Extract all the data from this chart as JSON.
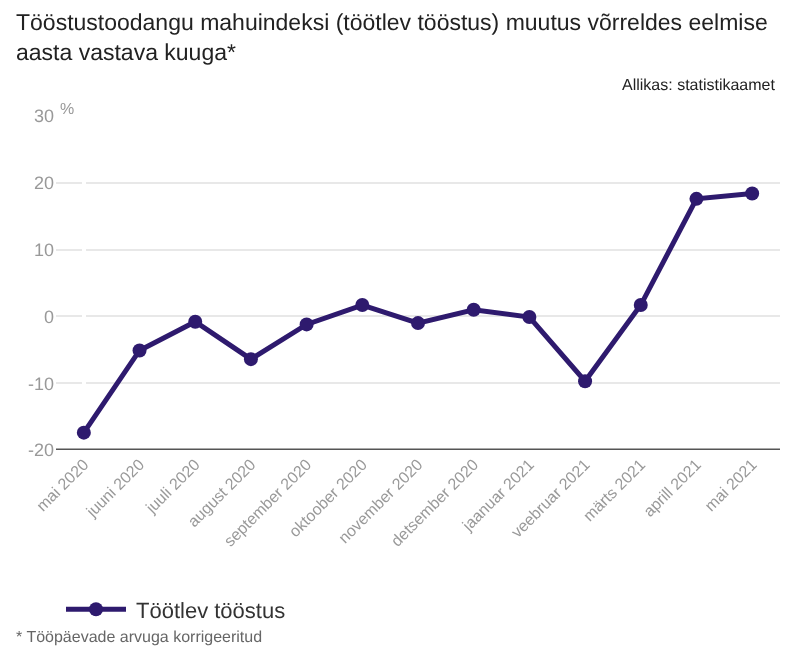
{
  "chart_data": {
    "type": "line",
    "title": "Tööstustoodangu mahuindeksi (töötlev tööstus) muutus võrreldes eelmise aasta vastava kuuga*",
    "ylabel": "%",
    "annotations": [
      "Allikas: statistikaamet",
      "* Tööpäevade arvuga korrigeeritud"
    ],
    "categories": [
      "mai 2020",
      "juuni 2020",
      "juuli 2020",
      "august 2020",
      "september 2020",
      "oktoober 2020",
      "november 2020",
      "detsember 2020",
      "jaanuar 2021",
      "veebruar 2021",
      "märts 2021",
      "aprill 2021",
      "mai 2021"
    ],
    "series": [
      {
        "name": "Töötlev tööstus",
        "color": "#2e1a6e",
        "values": [
          -17.4,
          -5.1,
          -0.8,
          -6.4,
          -1.2,
          1.7,
          -1.0,
          1.0,
          -0.1,
          -9.7,
          1.7,
          17.6,
          18.4
        ]
      }
    ],
    "ylim": [
      -20,
      30
    ],
    "yticks": [
      -20,
      -10,
      0,
      10,
      20,
      30
    ],
    "grid": "y",
    "legend": "bottom left",
    "marker": "circle",
    "line_style": "solid"
  }
}
